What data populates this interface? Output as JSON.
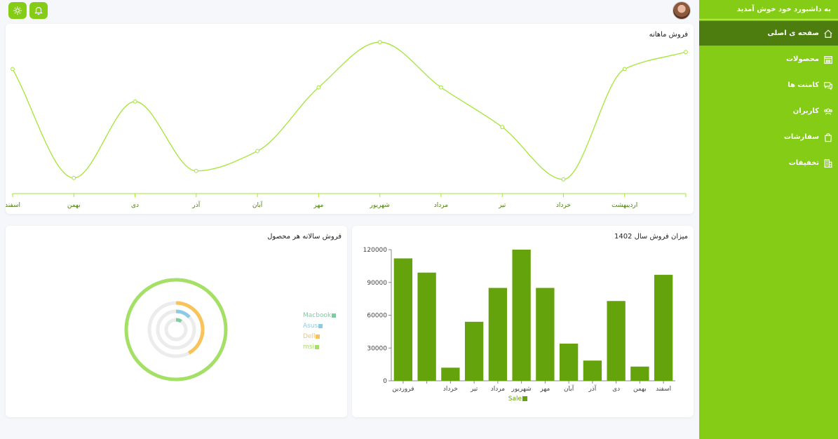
{
  "sidebar": {
    "title": "به داشبورد خود خوش آمدید",
    "items": [
      {
        "label": "صفحه ی اصلی",
        "icon": "home-icon",
        "active": true
      },
      {
        "label": "محصولات",
        "icon": "store-icon",
        "active": false
      },
      {
        "label": "کامنت ها",
        "icon": "comments-icon",
        "active": false
      },
      {
        "label": "کاربران",
        "icon": "users-icon",
        "active": false
      },
      {
        "label": "سفارشات",
        "icon": "bag-icon",
        "active": false
      },
      {
        "label": "تخفیفات",
        "icon": "building-icon",
        "active": false
      }
    ]
  },
  "topbar": {
    "buttons": [
      {
        "icon": "bell-icon"
      },
      {
        "icon": "sun-icon"
      }
    ],
    "avatar": "user-avatar"
  },
  "colors": {
    "accent": "#84cc16",
    "accent_dark": "#4d7c0f",
    "line": "#a3e635",
    "bar": "#65a30d",
    "ring_msi": "#a3e065",
    "ring_dell": "#f8c35a",
    "ring_asus": "#8ecae6",
    "ring_macbook": "#7fcca0",
    "ring_track": "#ececec"
  },
  "monthly_sales": {
    "title": "فروش ماهانه"
  },
  "yearly_products": {
    "title": "فروش سالانه هر محصول"
  },
  "sales_1402": {
    "title": "میزان فروش سال 1402"
  },
  "chart_data": [
    {
      "type": "line",
      "title": "فروش ماهانه",
      "categories": [
        "فروردین",
        "اردیبهشت",
        "خرداد",
        "تیر",
        "مرداد",
        "شهریور",
        "مهر",
        "آبان",
        "آذر",
        "دی",
        "بهمن",
        "اسفند"
      ],
      "x_tick_labels": [
        "",
        "اردیبهشت",
        "خرداد",
        "تیر",
        "مرداد",
        "شهریور",
        "مهر",
        "آبان",
        "آذر",
        "دی",
        "بهمن",
        "اسفند"
      ],
      "values": [
        100,
        88,
        10,
        47,
        75,
        107,
        75,
        30,
        16,
        65,
        11,
        88
      ],
      "ylim": [
        0,
        110
      ],
      "grid": false,
      "smooth": true,
      "reversed": true
    },
    {
      "type": "bar",
      "title": "میزان فروش سال 1402",
      "categories": [
        "فروردین",
        "اردیبهشت",
        "خرداد",
        "تیر",
        "مرداد",
        "شهریور",
        "مهر",
        "آبان",
        "آذر",
        "دی",
        "بهمن",
        "اسفند"
      ],
      "x_tick_labels": [
        "فروردین",
        "",
        "خرداد",
        "تیر",
        "مرداد",
        "شهریور",
        "مهر",
        "آبان",
        "آذر",
        "دی",
        "بهمن",
        "اسفند"
      ],
      "series": [
        {
          "name": "Sale",
          "values": [
            112000,
            99000,
            12000,
            54000,
            85000,
            120000,
            85000,
            34000,
            18500,
            73000,
            13000,
            97000
          ]
        }
      ],
      "ylim": [
        0,
        120000
      ],
      "yticks": [
        "0",
        "30000",
        "60000",
        "90000",
        "120000"
      ],
      "legend": "bottom"
    },
    {
      "type": "radial-bar",
      "title": "فروش سالانه هر محصول",
      "series": [
        {
          "name": "Macbook",
          "value": 9
        },
        {
          "name": "Asus",
          "value": 13
        },
        {
          "name": "Dell",
          "value": 42
        },
        {
          "name": "msi",
          "value": 100
        }
      ],
      "max": 100,
      "legend": "right"
    }
  ]
}
